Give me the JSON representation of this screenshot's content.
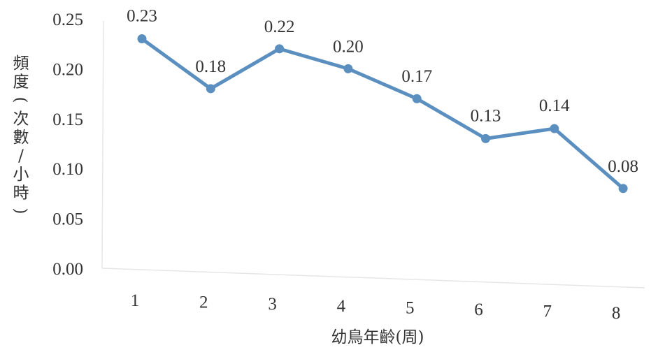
{
  "chart_data": {
    "type": "line",
    "xlabel": "幼鳥年齡(周)",
    "ylabel": "頻度(次數/小時)",
    "categories": [
      "1",
      "2",
      "3",
      "4",
      "5",
      "6",
      "7",
      "8"
    ],
    "series": [
      {
        "values": [
          0.23,
          0.18,
          0.22,
          0.2,
          0.17,
          0.13,
          0.14,
          0.08
        ],
        "data_labels": [
          "0.23",
          "0.18",
          "0.22",
          "0.20",
          "0.17",
          "0.13",
          "0.14",
          "0.08"
        ],
        "color": "#5b8fc0"
      }
    ],
    "ylim": [
      0.0,
      0.25
    ],
    "yticks": [
      "0.00",
      "0.05",
      "0.10",
      "0.15",
      "0.20",
      "0.25"
    ],
    "grid": false,
    "legend": "none"
  }
}
